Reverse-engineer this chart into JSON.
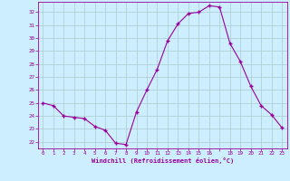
{
  "x": [
    0,
    1,
    2,
    3,
    4,
    5,
    6,
    7,
    8,
    9,
    10,
    11,
    12,
    13,
    14,
    15,
    16,
    17,
    18,
    19,
    20,
    21,
    22,
    23
  ],
  "y": [
    25.0,
    24.8,
    24.0,
    23.9,
    23.8,
    23.2,
    22.9,
    21.9,
    21.8,
    24.3,
    26.0,
    27.6,
    29.8,
    31.1,
    31.9,
    32.0,
    32.5,
    32.4,
    29.6,
    28.2,
    26.3,
    24.8,
    24.1,
    23.1
  ],
  "line_color": "#990099",
  "marker_color": "#990099",
  "bg_color": "#cceeff",
  "grid_color": "#aacccc",
  "axis_color": "#990099",
  "tick_color": "#990099",
  "xlabel": "Windchill (Refroidissement éolien,°C)",
  "xlabel_color": "#990099",
  "ylim": [
    21.5,
    32.8
  ],
  "xlim": [
    -0.5,
    23.5
  ],
  "yticks": [
    22,
    23,
    24,
    25,
    26,
    27,
    28,
    29,
    30,
    31,
    32
  ],
  "xtick_labels": [
    "0",
    "1",
    "2",
    "3",
    "4",
    "5",
    "6",
    "7",
    "8",
    "9",
    "10",
    "11",
    "12",
    "13",
    "14",
    "15",
    "16",
    "",
    "18",
    "19",
    "20",
    "21",
    "22",
    "23"
  ]
}
